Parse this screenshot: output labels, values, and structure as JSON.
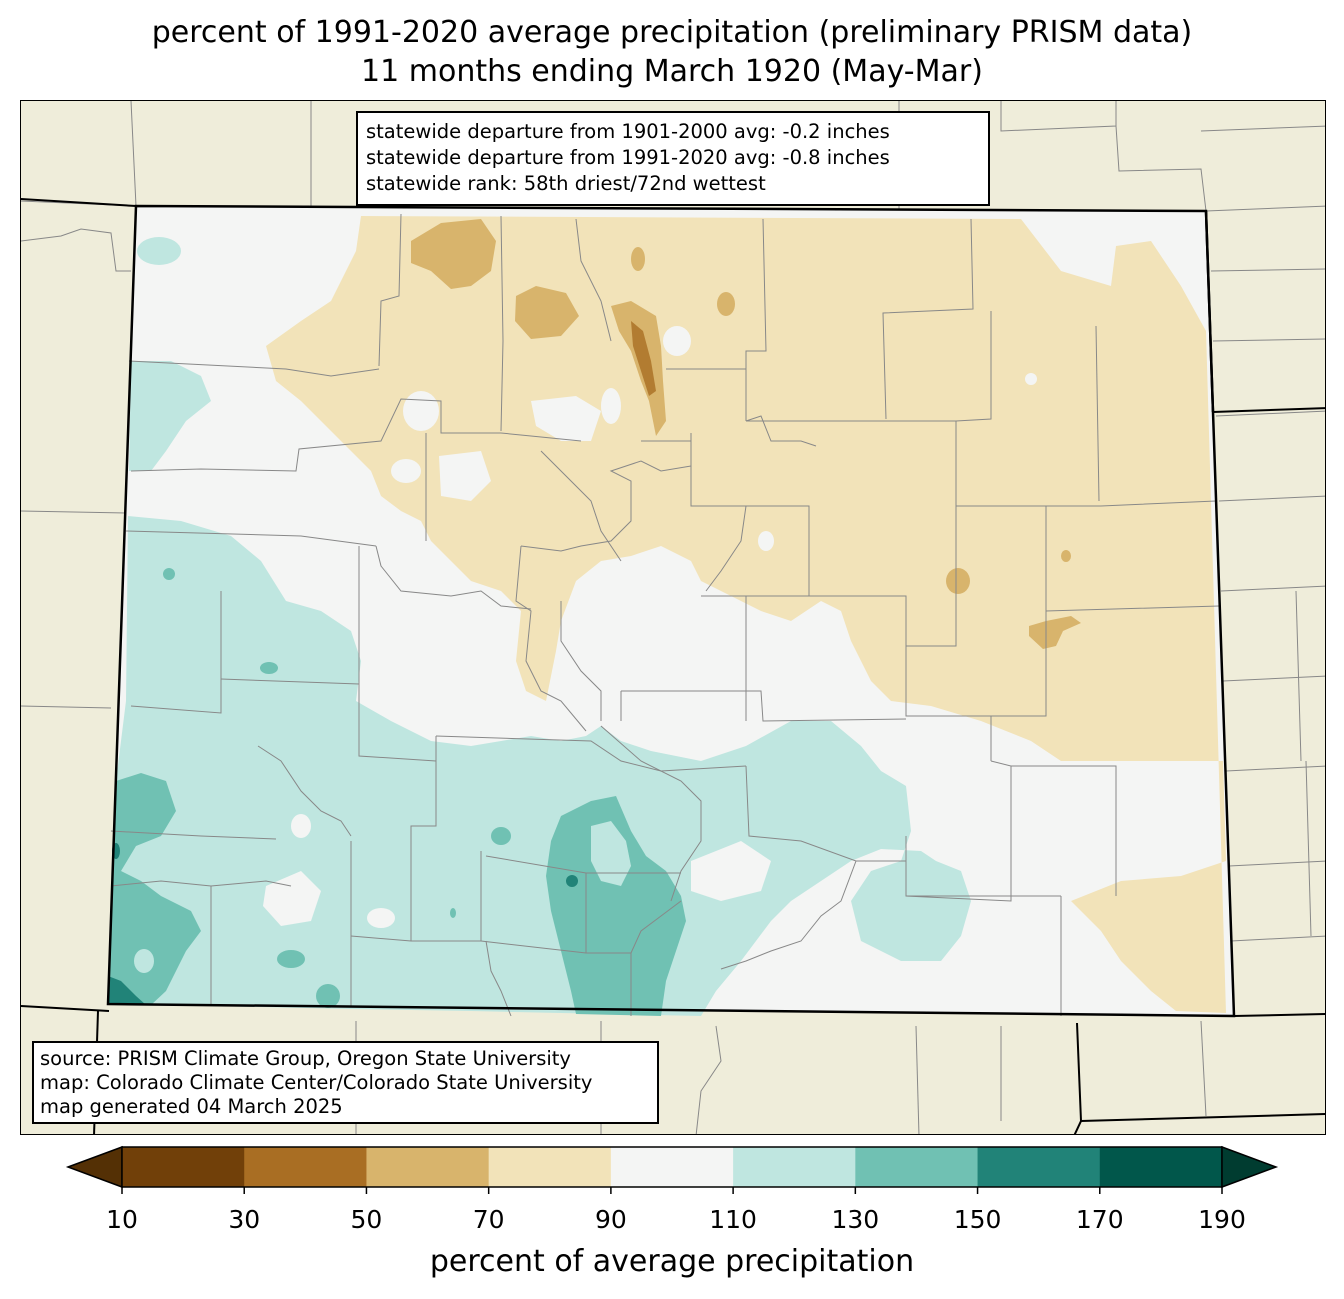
{
  "title": {
    "line1": "percent of 1991-2020 average precipitation (preliminary PRISM data)",
    "line2": "11 months ending March 1920 (May-Mar)"
  },
  "stats": {
    "line1": "statewide departure from 1901-2000 avg: -0.2 inches",
    "line2": "statewide departure from 1991-2020 avg: -0.8 inches",
    "line3": "statewide rank: 58th driest/72nd wettest"
  },
  "source": {
    "line1": "source: PRISM Climate Group, Oregon State University",
    "line2": "map: Colorado Climate Center/Colorado State University",
    "line3": "map generated 04 March 2025"
  },
  "colorbar": {
    "label": "percent of average precipitation",
    "ticks": [
      "10",
      "30",
      "50",
      "70",
      "90",
      "110",
      "130",
      "150",
      "170",
      "190"
    ],
    "bins": [
      {
        "range": "10-30",
        "color": "#714009"
      },
      {
        "range": "30-50",
        "color": "#a96e23"
      },
      {
        "range": "50-70",
        "color": "#d8b46c"
      },
      {
        "range": "70-90",
        "color": "#f2e3b9"
      },
      {
        "range": "90-110",
        "color": "#f4f5f4"
      },
      {
        "range": "110-130",
        "color": "#bfe6e0"
      },
      {
        "range": "130-150",
        "color": "#70c1b3"
      },
      {
        "range": "150-170",
        "color": "#218378"
      },
      {
        "range": "170-190",
        "color": "#01574b"
      }
    ],
    "under_color": "#543005",
    "over_color": "#003c30"
  },
  "map_colors": {
    "land_outside": "#efedda",
    "county_lines": "#888888",
    "state_lines": "#000000"
  }
}
